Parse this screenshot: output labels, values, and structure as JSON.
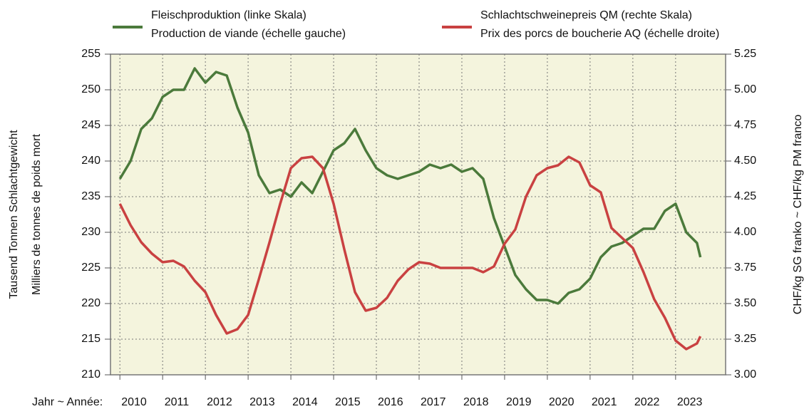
{
  "chart_data": {
    "type": "line",
    "xlabel": "Jahr ~ Année:",
    "ylabel": [
      "Tausend Tonnen Schlachtgewicht",
      "Milliers de tonnes de poids mort"
    ],
    "y2label": "CHF/kg SG franko  ~  CHF/kg PM franco",
    "x": [
      2010,
      2010.25,
      2010.5,
      2010.75,
      2011,
      2011.25,
      2011.5,
      2011.75,
      2012,
      2012.25,
      2012.5,
      2012.75,
      2013,
      2013.25,
      2013.5,
      2013.75,
      2014,
      2014.25,
      2014.5,
      2014.75,
      2015,
      2015.25,
      2015.5,
      2015.75,
      2016,
      2016.25,
      2016.5,
      2016.75,
      2017,
      2017.25,
      2017.5,
      2017.75,
      2018,
      2018.25,
      2018.5,
      2018.75,
      2019,
      2019.25,
      2019.5,
      2019.75,
      2020,
      2020.25,
      2020.5,
      2020.75,
      2021,
      2021.25,
      2021.5,
      2021.75,
      2022,
      2022.25,
      2022.5,
      2022.75,
      2023,
      2023.25,
      2023.5,
      2023.58
    ],
    "series": [
      {
        "name": "Fleischproduktion (linke Skala)",
        "subname": "Production de viande (échelle gauche)",
        "color": "#4b7a3b",
        "axis": "y",
        "values": [
          237.5,
          240,
          244.5,
          246,
          249,
          250,
          250,
          253,
          251,
          252.5,
          252,
          247.5,
          244,
          238,
          235.5,
          236,
          235,
          237,
          235.5,
          238.5,
          241.5,
          242.5,
          244.5,
          241.5,
          239,
          238,
          237.5,
          238,
          238.5,
          239.5,
          239,
          239.5,
          238.5,
          239,
          237.5,
          232,
          228,
          224,
          222,
          220.5,
          220.5,
          220,
          221.5,
          222,
          223.5,
          226.5,
          228,
          228.5,
          229.5,
          230.5,
          230.5,
          233,
          234,
          230,
          228.5,
          226.5
        ]
      },
      {
        "name": "Schlachtschweinepreis QM (rechte Skala)",
        "subname": "Prix des porcs de boucherie AQ (échelle droite)",
        "color": "#c94141",
        "axis": "y2",
        "values": [
          4.2,
          4.05,
          3.93,
          3.85,
          3.79,
          3.8,
          3.76,
          3.66,
          3.58,
          3.42,
          3.29,
          3.32,
          3.42,
          3.67,
          3.93,
          4.2,
          4.45,
          4.52,
          4.53,
          4.45,
          4.2,
          3.88,
          3.58,
          3.45,
          3.47,
          3.54,
          3.66,
          3.74,
          3.79,
          3.78,
          3.75,
          3.75,
          3.75,
          3.75,
          3.72,
          3.76,
          3.92,
          4.02,
          4.25,
          4.4,
          4.45,
          4.47,
          4.53,
          4.49,
          4.33,
          4.28,
          4.03,
          3.96,
          3.89,
          3.72,
          3.53,
          3.4,
          3.24,
          3.18,
          3.22,
          3.27
        ]
      }
    ],
    "xlim": [
      2009.78,
      2024.17
    ],
    "xticks": [
      {
        "value": 2010.33,
        "label": "2010"
      },
      {
        "value": 2011.33,
        "label": "2011"
      },
      {
        "value": 2012.33,
        "label": "2012"
      },
      {
        "value": 2013.33,
        "label": "2013"
      },
      {
        "value": 2014.33,
        "label": "2014"
      },
      {
        "value": 2015.33,
        "label": "2015"
      },
      {
        "value": 2016.33,
        "label": "2016"
      },
      {
        "value": 2017.33,
        "label": "2017"
      },
      {
        "value": 2018.33,
        "label": "2018"
      },
      {
        "value": 2019.33,
        "label": "2019"
      },
      {
        "value": 2020.33,
        "label": "2020"
      },
      {
        "value": 2021.33,
        "label": "2021"
      },
      {
        "value": 2022.33,
        "label": "2022"
      },
      {
        "value": 2023.33,
        "label": "2023"
      }
    ],
    "xgrid": [
      2010,
      2011,
      2012,
      2013,
      2014,
      2015,
      2016,
      2017,
      2018,
      2019,
      2020,
      2021,
      2022,
      2023
    ],
    "ylim": [
      210,
      255
    ],
    "yticks": [
      210,
      215,
      220,
      225,
      230,
      235,
      240,
      245,
      250,
      255
    ],
    "y2lim": [
      3.0,
      5.25
    ],
    "y2ticks": [
      {
        "value": 3.0,
        "label": "3.00"
      },
      {
        "value": 3.25,
        "label": "3.25"
      },
      {
        "value": 3.5,
        "label": "3.50"
      },
      {
        "value": 3.75,
        "label": "3.75"
      },
      {
        "value": 4.0,
        "label": "4.00"
      },
      {
        "value": 4.25,
        "label": "4.25"
      },
      {
        "value": 4.5,
        "label": "4.50"
      },
      {
        "value": 4.75,
        "label": "4.75"
      },
      {
        "value": 5.0,
        "label": "5.00"
      },
      {
        "value": 5.25,
        "label": "5.25"
      }
    ],
    "grid": true,
    "legend": "top",
    "background": "#f4f4dd"
  }
}
